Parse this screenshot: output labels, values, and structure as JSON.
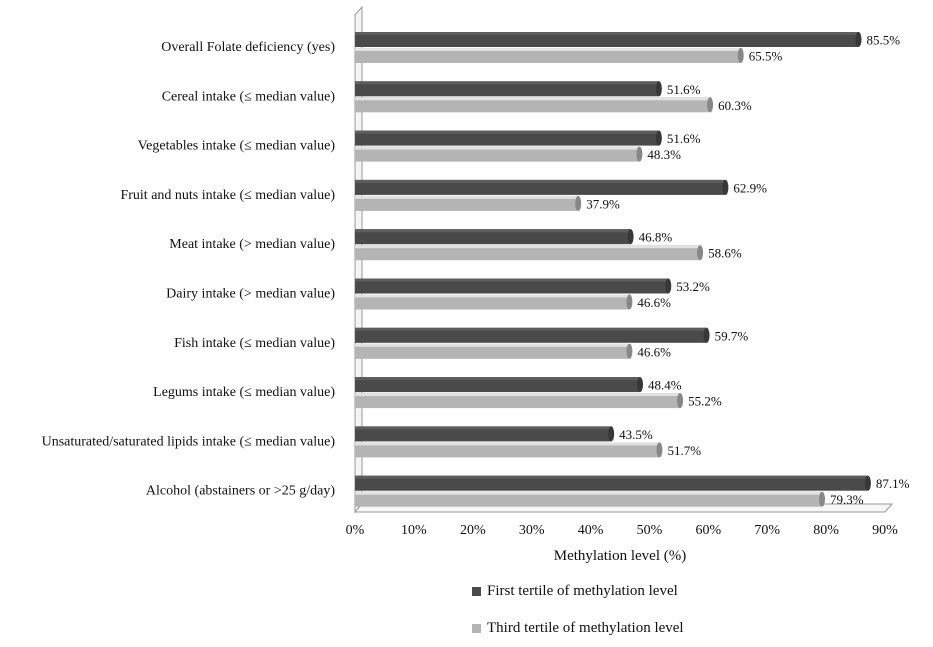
{
  "chart_data": {
    "type": "bar",
    "orientation": "horizontal",
    "categories": [
      "Overall Folate deficiency (yes)",
      "Cereal intake (≤ median value)",
      "Vegetables intake (≤ median value)",
      "Fruit and nuts intake (≤ median value)",
      "Meat intake (> median value)",
      "Dairy intake (> median value)",
      "Fish intake (≤ median value)",
      "Legums intake (≤ median value)",
      "Unsaturated/saturated lipids intake (≤ median value)",
      "Alcohol (abstainers or >25 g/day)"
    ],
    "series": [
      {
        "name": "First tertile of methylation level",
        "color": "#4a4a4a",
        "values": [
          85.5,
          51.6,
          51.6,
          62.9,
          46.8,
          53.2,
          59.7,
          48.4,
          43.5,
          87.1
        ],
        "labels": [
          "85.5%",
          "51.6%",
          "51.6%",
          "62.9%",
          "46.8%",
          "53.2%",
          "59.7%",
          "48.4%",
          "43.5%",
          "87.1%"
        ]
      },
      {
        "name": "Third tertile of methylation level",
        "color": "#b4b4b4",
        "values": [
          65.5,
          60.3,
          48.3,
          37.9,
          58.6,
          46.6,
          46.6,
          55.2,
          51.7,
          79.3
        ],
        "labels": [
          "65.5%",
          "60.3%",
          "48.3%",
          "37.9%",
          "58.6%",
          "46.6%",
          "46.6%",
          "55.2%",
          "51.7%",
          "79.3%"
        ]
      }
    ],
    "xlabel": "Methylation level (%)",
    "xlim": [
      0,
      90
    ],
    "xticks": [
      "0%",
      "10%",
      "20%",
      "30%",
      "40%",
      "50%",
      "60%",
      "70%",
      "80%",
      "90%"
    ],
    "grid": false,
    "legend_position": "bottom"
  },
  "legend": {
    "first": "First tertile of methylation level",
    "third": "Third tertile of methylation level"
  }
}
